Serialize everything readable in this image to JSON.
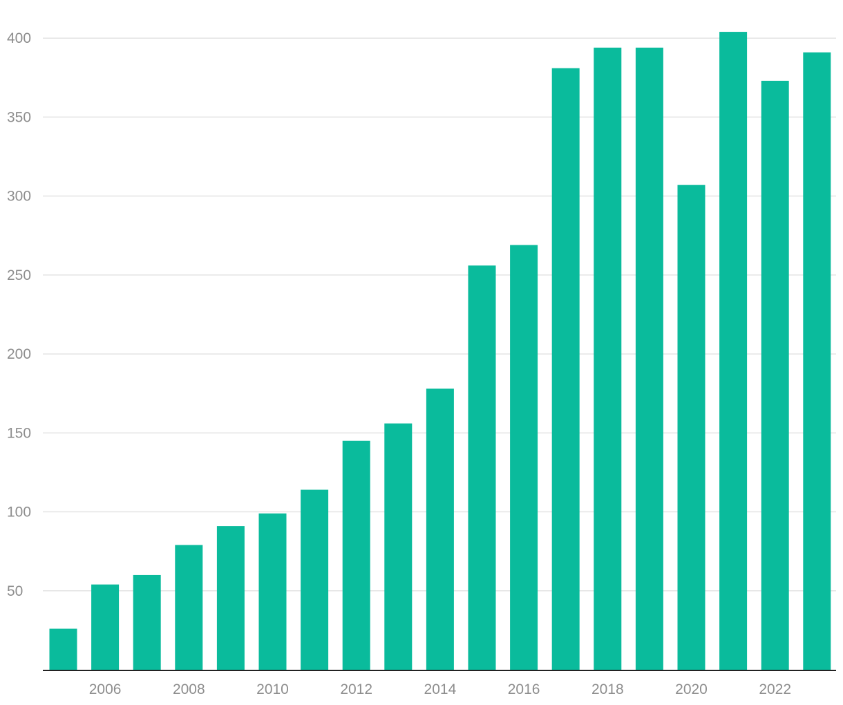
{
  "chart_data": {
    "type": "bar",
    "title": "",
    "xlabel": "",
    "ylabel": "",
    "categories": [
      "2005",
      "2006",
      "2007",
      "2008",
      "2009",
      "2010",
      "2011",
      "2012",
      "2013",
      "2014",
      "2015",
      "2016",
      "2017",
      "2018",
      "2019",
      "2020",
      "2021",
      "2022",
      "2023"
    ],
    "values": [
      26,
      54,
      60,
      79,
      91,
      99,
      114,
      145,
      156,
      178,
      256,
      269,
      381,
      394,
      394,
      307,
      404,
      373,
      391
    ],
    "ylim": [
      0,
      400
    ],
    "yticks": [
      400,
      350,
      300,
      250,
      200,
      150,
      100,
      50
    ],
    "xtick_labels": [
      "2006",
      "2008",
      "2010",
      "2012",
      "2014",
      "2016",
      "2018",
      "2020",
      "2022"
    ],
    "bar_color": "#0abb9c",
    "grid": true,
    "legend": "none"
  }
}
